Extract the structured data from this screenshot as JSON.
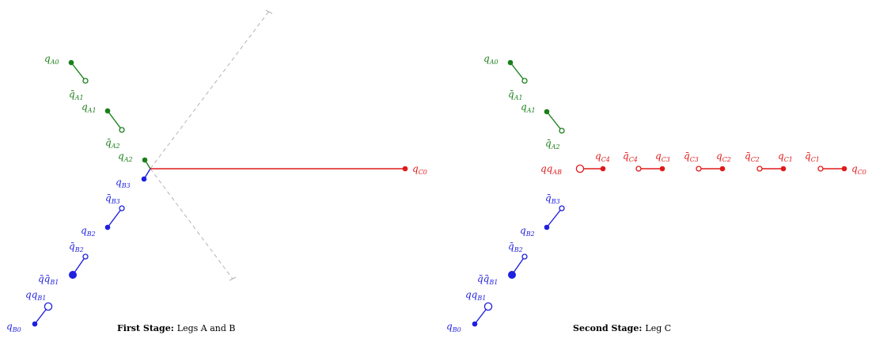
{
  "colors": {
    "green": "#1a7f1a",
    "blue": "#1f1fe0",
    "red": "#e01a1a",
    "dash": "#b4b4b4",
    "text": "#000000"
  },
  "panel1": {
    "caption_bold": "First Stage:",
    "caption_rest": "Legs A and B",
    "labels": {
      "qA0": {
        "base": "q",
        "sub": "A0",
        "bar": false
      },
      "qbarA1": {
        "base": "q",
        "sub": "A1",
        "bar": true
      },
      "qA1": {
        "base": "q",
        "sub": "A1",
        "bar": false
      },
      "qbarA2": {
        "base": "q",
        "sub": "A2",
        "bar": true
      },
      "qA2": {
        "base": "q",
        "sub": "A2",
        "bar": false
      },
      "qB3": {
        "base": "q",
        "sub": "B3",
        "bar": false
      },
      "qbarB3": {
        "base": "q",
        "sub": "B3",
        "bar": true
      },
      "qB2": {
        "base": "q",
        "sub": "B2",
        "bar": false
      },
      "qbarB2": {
        "base": "q",
        "sub": "B2",
        "bar": true
      },
      "qbarqbarB1": {
        "base": "q̄q̄",
        "sub": "B1",
        "bar": false
      },
      "qqB1": {
        "base": "qq",
        "sub": "B1",
        "bar": false
      },
      "qB0": {
        "base": "q",
        "sub": "B0",
        "bar": false
      },
      "qC0": {
        "base": "q",
        "sub": "C0",
        "bar": false
      }
    }
  },
  "panel2": {
    "caption_bold": "Second Stage:",
    "caption_rest": "Leg C",
    "labels": {
      "qA0": {
        "base": "q",
        "sub": "A0",
        "bar": false
      },
      "qbarA1": {
        "base": "q",
        "sub": "A1",
        "bar": true
      },
      "qA1": {
        "base": "q",
        "sub": "A1",
        "bar": false
      },
      "qbarA2": {
        "base": "q",
        "sub": "A2",
        "bar": true
      },
      "qqAB": {
        "base": "qq",
        "sub": "AB",
        "bar": false
      },
      "qC4": {
        "base": "q",
        "sub": "C4",
        "bar": false
      },
      "qbarC4": {
        "base": "q",
        "sub": "C4",
        "bar": true
      },
      "qC3": {
        "base": "q",
        "sub": "C3",
        "bar": false
      },
      "qbarC3": {
        "base": "q",
        "sub": "C3",
        "bar": true
      },
      "qC2": {
        "base": "q",
        "sub": "C2",
        "bar": false
      },
      "qbarC2": {
        "base": "q",
        "sub": "C2",
        "bar": true
      },
      "qC1": {
        "base": "q",
        "sub": "C1",
        "bar": false
      },
      "qbarC1": {
        "base": "q",
        "sub": "C1",
        "bar": true
      },
      "qC0": {
        "base": "q",
        "sub": "C0",
        "bar": false
      },
      "qbarB3": {
        "base": "q",
        "sub": "B3",
        "bar": true
      },
      "qB2": {
        "base": "q",
        "sub": "B2",
        "bar": false
      },
      "qbarB2": {
        "base": "q",
        "sub": "B2",
        "bar": true
      },
      "qbarqbarB1": {
        "base": "q̄q̄",
        "sub": "B1",
        "bar": false
      },
      "qqB1": {
        "base": "qq",
        "sub": "B1",
        "bar": false
      },
      "qB0": {
        "base": "q",
        "sub": "B0",
        "bar": false
      }
    }
  }
}
